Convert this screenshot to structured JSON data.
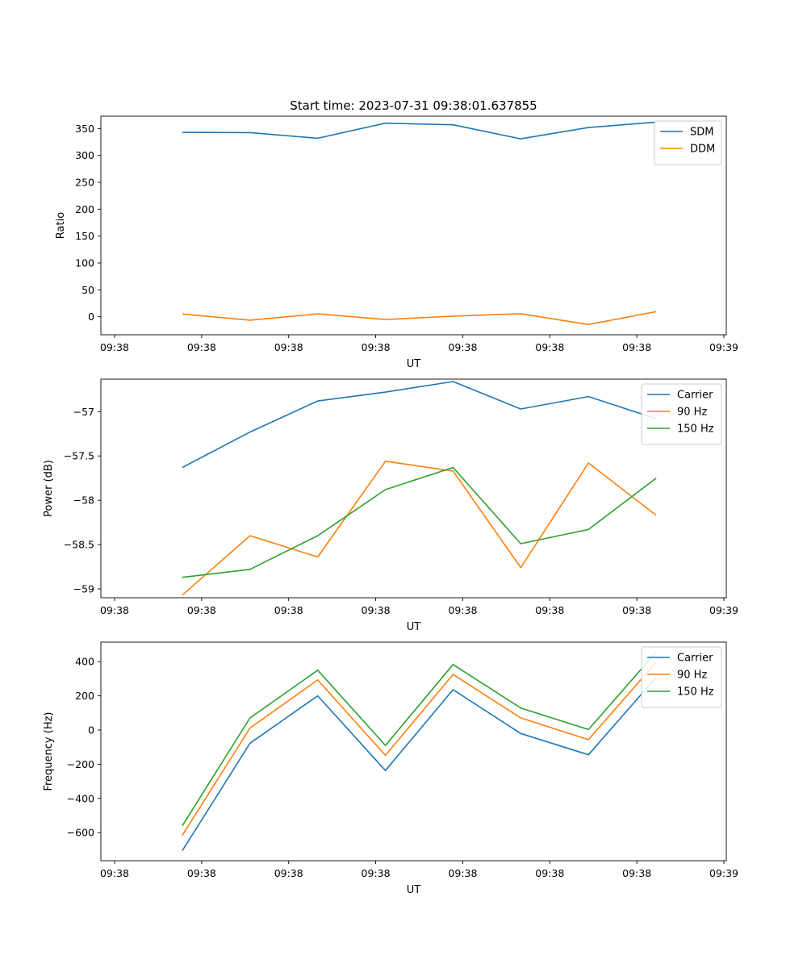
{
  "figure": {
    "title": "Start time: 2023-07-31 09:38:01.637855"
  },
  "chart_data": [
    {
      "type": "line",
      "title": "Start time: 2023-07-31 09:38:01.637855",
      "xlabel": "UT",
      "ylabel": "Ratio",
      "x_tick_labels": [
        "09:38",
        "09:38",
        "09:38",
        "09:38",
        "09:38",
        "09:38",
        "09:38"
      ],
      "x_tick_end_label": "09:39",
      "x_range": [
        0,
        9
      ],
      "x": [
        1,
        2,
        3,
        4,
        5,
        6,
        7,
        8
      ],
      "ylim": [
        -33.6,
        373.1
      ],
      "y_ticks": [
        0,
        50,
        100,
        150,
        200,
        250,
        300,
        350
      ],
      "legend_position": "upper right",
      "grid": false,
      "series": [
        {
          "name": "SDM",
          "color": "#1f77b4",
          "values": [
            343,
            342.5,
            332,
            360,
            357,
            331,
            352,
            362
          ]
        },
        {
          "name": "DDM",
          "color": "#ff7f0e",
          "values": [
            5,
            -6.5,
            5.3,
            -5.3,
            1,
            5.6,
            -14.6,
            9.4
          ]
        }
      ]
    },
    {
      "type": "line",
      "title": "",
      "xlabel": "UT",
      "ylabel": "Power (dB)",
      "x_tick_labels": [
        "09:38",
        "09:38",
        "09:38",
        "09:38",
        "09:38",
        "09:38",
        "09:38"
      ],
      "x_tick_end_label": "09:39",
      "x_range": [
        0,
        9
      ],
      "x": [
        1,
        2,
        3,
        4,
        5,
        6,
        7,
        8
      ],
      "ylim": [
        -59.1,
        -56.633
      ],
      "y_ticks": [
        -59.0,
        -58.5,
        -58.0,
        -57.5,
        -57.0
      ],
      "legend_position": "upper right",
      "grid": false,
      "series": [
        {
          "name": "Carrier",
          "color": "#1f77b4",
          "values": [
            -57.63,
            -57.23,
            -56.88,
            -56.78,
            -56.66,
            -56.97,
            -56.83,
            -57.08
          ]
        },
        {
          "name": "90 Hz",
          "color": "#ff7f0e",
          "values": [
            -59.07,
            -58.4,
            -58.64,
            -57.56,
            -57.67,
            -58.76,
            -57.58,
            -58.17
          ]
        },
        {
          "name": "150 Hz",
          "color": "#2ca02c",
          "values": [
            -58.87,
            -58.78,
            -58.4,
            -57.88,
            -57.63,
            -58.49,
            -58.33,
            -57.75
          ]
        }
      ]
    },
    {
      "type": "line",
      "title": "",
      "xlabel": "UT",
      "ylabel": "Frequency (Hz)",
      "x_tick_labels": [
        "09:38",
        "09:38",
        "09:38",
        "09:38",
        "09:38",
        "09:38",
        "09:38"
      ],
      "x_tick_end_label": "09:39",
      "x_range": [
        0,
        9
      ],
      "x": [
        1,
        2,
        3,
        4,
        5,
        6,
        7,
        8
      ],
      "ylim": [
        -764.3,
        514.4
      ],
      "y_ticks": [
        -600,
        -400,
        -200,
        0,
        200,
        400
      ],
      "legend_position": "upper right",
      "grid": false,
      "series": [
        {
          "name": "Carrier",
          "color": "#1f77b4",
          "values": [
            -706,
            -77,
            200,
            -237,
            236,
            -20,
            -145,
            308
          ]
        },
        {
          "name": "90 Hz",
          "color": "#ff7f0e",
          "values": [
            -616,
            12,
            293,
            -148,
            325,
            71,
            -56,
            397
          ]
        },
        {
          "name": "150 Hz",
          "color": "#2ca02c",
          "values": [
            -560,
            71,
            350,
            -90,
            383,
            129,
            3,
            456
          ]
        }
      ]
    }
  ]
}
